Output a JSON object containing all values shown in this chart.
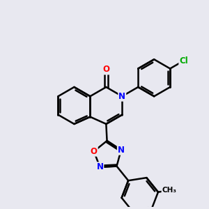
{
  "bg_color": "#e8e8f0",
  "bond_color": "#000000",
  "bond_width": 1.8,
  "atom_colors": {
    "N": "#0000ff",
    "O": "#ff0000",
    "Cl": "#00aa00",
    "C": "#000000"
  },
  "font_size": 8.5,
  "fig_size": [
    3.0,
    3.0
  ],
  "dpi": 100
}
